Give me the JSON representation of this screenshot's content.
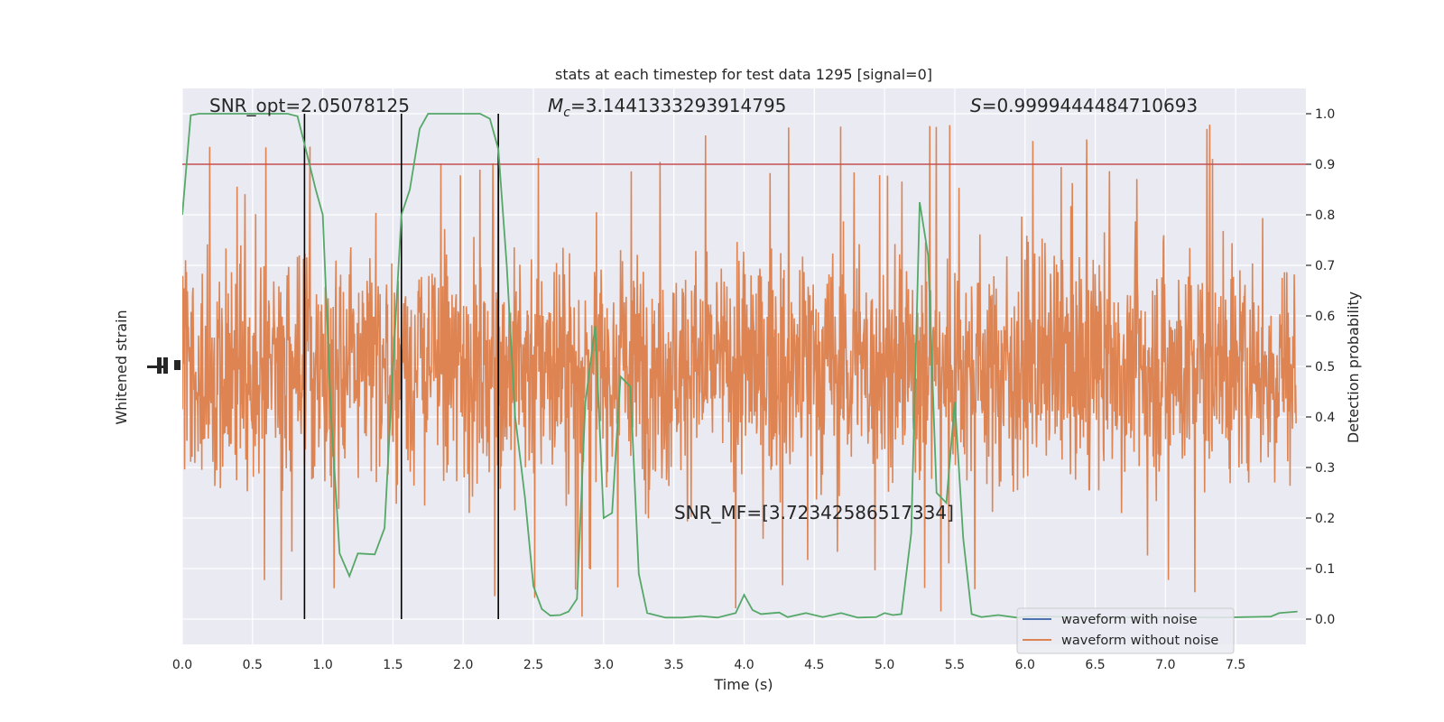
{
  "chart_data": {
    "type": "line",
    "title": "stats at each timestep for test data 1295 [signal=0]",
    "xlabel": "Time (s)",
    "ylabel_left": "Whitened strain",
    "ylabel_right": "Detection probability",
    "xlim": [
      0.0,
      8.0
    ],
    "ylim_right": [
      -0.05,
      1.05
    ],
    "xticks": [
      "0.0",
      "0.5",
      "1.0",
      "1.5",
      "2.0",
      "2.5",
      "3.0",
      "3.5",
      "4.0",
      "4.5",
      "5.0",
      "5.5",
      "6.0",
      "6.5",
      "7.0",
      "7.5"
    ],
    "yticks_right": [
      "0.0",
      "0.1",
      "0.2",
      "0.3",
      "0.4",
      "0.5",
      "0.6",
      "0.7",
      "0.8",
      "0.9",
      "1.0"
    ],
    "grid": true,
    "legend_position": "lower right",
    "annotations": {
      "snr_opt": "SNR_opt=2.05078125",
      "mc_symbol": "M",
      "mc_sub": "c",
      "mc_value": "=3.1441333293914795",
      "s_symbol": "S",
      "s_value": "=0.9999444484710693",
      "snr_mf": "SNR_MF=[3.72342586517334]"
    },
    "threshold": 0.9,
    "vlines_x": [
      0.87,
      1.56,
      2.25
    ],
    "series": [
      {
        "name": "waveform with noise",
        "color": "#4c72b0",
        "values": []
      },
      {
        "name": "waveform without noise",
        "color": "#dd8452",
        "y_center": 0.5,
        "y_half_range_typical": 0.29,
        "y_max": 1.0,
        "y_min": 0.005
      },
      {
        "color": "#55a868",
        "x": [
          0.0,
          0.06,
          0.12,
          0.25,
          0.5,
          0.75,
          0.82,
          0.87,
          0.95,
          1.0,
          1.06,
          1.12,
          1.19,
          1.25,
          1.37,
          1.44,
          1.5,
          1.56,
          1.62,
          1.69,
          1.75,
          1.87,
          2.0,
          2.12,
          2.19,
          2.25,
          2.31,
          2.37,
          2.44,
          2.5,
          2.56,
          2.62,
          2.69,
          2.75,
          2.81,
          2.87,
          2.94,
          3.0,
          3.06,
          3.12,
          3.19,
          3.25,
          3.31,
          3.44,
          3.56,
          3.69,
          3.81,
          3.94,
          4.0,
          4.06,
          4.12,
          4.25,
          4.31,
          4.44,
          4.56,
          4.69,
          4.81,
          4.94,
          5.0,
          5.06,
          5.12,
          5.19,
          5.25,
          5.31,
          5.37,
          5.44,
          5.5,
          5.56,
          5.62,
          5.69,
          5.81,
          5.94,
          6.06,
          6.5,
          7.0,
          7.37,
          7.75,
          7.81,
          7.94
        ],
        "y": [
          0.8,
          0.997,
          1.0,
          1.0,
          1.0,
          1.0,
          0.995,
          0.94,
          0.85,
          0.8,
          0.4,
          0.13,
          0.085,
          0.13,
          0.128,
          0.18,
          0.5,
          0.8,
          0.85,
          0.97,
          1.0,
          1.0,
          1.0,
          1.0,
          0.99,
          0.93,
          0.7,
          0.4,
          0.24,
          0.065,
          0.02,
          0.007,
          0.008,
          0.015,
          0.04,
          0.43,
          0.58,
          0.2,
          0.21,
          0.48,
          0.46,
          0.09,
          0.012,
          0.003,
          0.003,
          0.006,
          0.003,
          0.012,
          0.048,
          0.018,
          0.01,
          0.013,
          0.004,
          0.012,
          0.004,
          0.012,
          0.003,
          0.004,
          0.012,
          0.008,
          0.01,
          0.17,
          0.825,
          0.72,
          0.25,
          0.23,
          0.43,
          0.16,
          0.01,
          0.004,
          0.008,
          0.003,
          0.006,
          0.003,
          0.004,
          0.003,
          0.005,
          0.012,
          0.015
        ]
      }
    ]
  }
}
